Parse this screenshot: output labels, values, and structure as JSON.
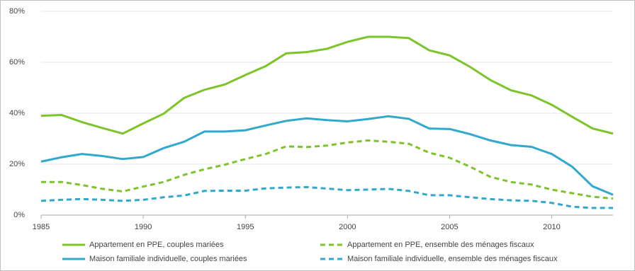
{
  "chart_data": {
    "type": "line",
    "x": [
      1985,
      1986,
      1987,
      1988,
      1989,
      1990,
      1991,
      1992,
      1993,
      1994,
      1995,
      1996,
      1997,
      1998,
      1999,
      2000,
      2001,
      2002,
      2003,
      2004,
      2005,
      2006,
      2007,
      2008,
      2009,
      2010,
      2011,
      2012,
      2013
    ],
    "xlim": [
      1985,
      2013
    ],
    "xticks": [
      1985,
      1990,
      1995,
      2000,
      2005,
      2010
    ],
    "ylim": [
      0,
      80
    ],
    "yticks": [
      {
        "value": 0,
        "label": "0%"
      },
      {
        "value": 20,
        "label": "20%"
      },
      {
        "value": 40,
        "label": "40%"
      },
      {
        "value": 60,
        "label": "60%"
      },
      {
        "value": 80,
        "label": "80%"
      }
    ],
    "grid": true,
    "series": [
      {
        "name": "Appartement en PPE, couples mariées",
        "color": "#7dc42a",
        "dashed": false,
        "values": [
          39,
          39.3,
          36.5,
          34.2,
          32,
          36,
          39.8,
          46,
          49.2,
          51.3,
          55,
          58.5,
          63.5,
          64,
          65.3,
          68,
          70,
          70,
          69.5,
          64.7,
          62.7,
          58.2,
          53,
          49,
          47,
          43.3,
          38.6,
          34,
          32
        ]
      },
      {
        "name": "Appartement en PPE, ensemble des ménages fiscaux",
        "color": "#7dc42a",
        "dashed": true,
        "values": [
          13,
          13,
          11.8,
          10.3,
          9.3,
          11.2,
          13,
          15.8,
          18,
          19.8,
          22,
          24,
          27,
          26.7,
          27.3,
          28.5,
          29.3,
          28.8,
          28,
          24.5,
          22.5,
          19,
          15,
          13,
          12,
          10,
          8.6,
          7.2,
          6.5
        ]
      },
      {
        "name": "Maison familiale individuelle, couples mariées",
        "color": "#31a9cc",
        "dashed": false,
        "values": [
          21,
          22.7,
          24,
          23.2,
          22,
          22.8,
          26.3,
          28.8,
          32.8,
          32.8,
          33.3,
          35.2,
          37,
          38,
          37.3,
          36.8,
          37.7,
          38.8,
          37.8,
          34,
          33.8,
          31.8,
          29.3,
          27.5,
          26.8,
          24,
          19,
          11.3,
          8
        ]
      },
      {
        "name": "Maison familiale individuelle, ensemble des ménages fiscaux",
        "color": "#31a9cc",
        "dashed": true,
        "values": [
          5.6,
          6,
          6.3,
          6,
          5.6,
          6,
          7,
          7.7,
          9.5,
          9.6,
          9.6,
          10.5,
          10.8,
          11,
          10.4,
          9.8,
          10,
          10.3,
          9.5,
          7.8,
          7.8,
          7,
          6.3,
          5.8,
          5.6,
          4.8,
          3.3,
          2.8,
          2.8
        ]
      }
    ]
  }
}
